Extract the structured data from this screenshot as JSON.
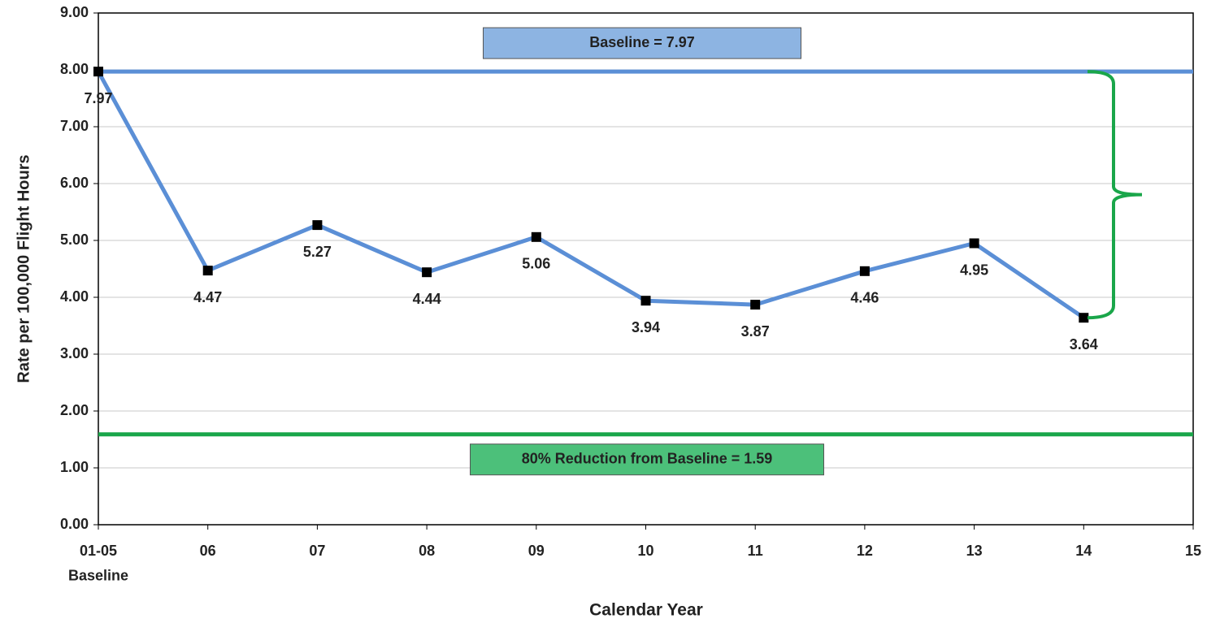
{
  "chart_data": {
    "type": "line",
    "y_label": "Rate per 100,000 Flight Hours",
    "x_label": "Calendar Year",
    "categories": [
      "01-05\nBaseline",
      "06",
      "07",
      "08",
      "09",
      "10",
      "11",
      "12",
      "13",
      "14",
      "15"
    ],
    "series": [
      {
        "color": "#5b8fd6",
        "marker_color": "#000000",
        "values": [
          7.97,
          4.47,
          5.27,
          4.44,
          5.06,
          3.94,
          3.87,
          4.46,
          4.95,
          3.64,
          null
        ]
      }
    ],
    "reference_lines": [
      {
        "value": 7.97,
        "color": "#5b8fd6",
        "label": "Baseline = 7.97",
        "box_color": "#8db4e2"
      },
      {
        "value": 1.59,
        "color": "#1aa64a",
        "label": "80% Reduction from Baseline = 1.59",
        "box_color": "#4cc07a"
      }
    ],
    "brace_color": "#1aa64a",
    "ylim": [
      0,
      9
    ],
    "yticks": [
      {
        "value": 0,
        "label": "0.00"
      },
      {
        "value": 1,
        "label": "1.00"
      },
      {
        "value": 2,
        "label": "2.00"
      },
      {
        "value": 3,
        "label": "3.00"
      },
      {
        "value": 4,
        "label": "4.00"
      },
      {
        "value": 5,
        "label": "5.00"
      },
      {
        "value": 6,
        "label": "6.00"
      },
      {
        "value": 7,
        "label": "7.00"
      },
      {
        "value": 8,
        "label": "8.00"
      },
      {
        "value": 9,
        "label": "9.00"
      }
    ],
    "grid": true
  }
}
